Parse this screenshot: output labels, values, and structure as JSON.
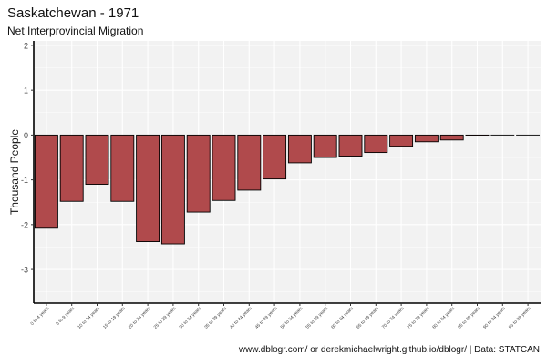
{
  "chart_data": {
    "type": "bar",
    "title": "Saskatchewan - 1971",
    "subtitle": "Net Interprovincial Migration",
    "xlabel": "",
    "ylabel": "Thousand People",
    "caption": "www.dblogr.com/ or derekmichaelwright.github.io/dblogr/ | Data: STATCAN",
    "ylim": [
      -3.75,
      2.1
    ],
    "yticks": [
      2,
      1,
      0,
      -1,
      -2,
      -3
    ],
    "grid": true,
    "legend": "none",
    "bar_color": "#b04a4c",
    "panel_color": "#f2f2f2",
    "categories": [
      "0 to 4 years",
      "5 to 9 years",
      "10 to 14 years",
      "15 to 19 years",
      "20 to 24 years",
      "25 to 29 years",
      "30 to 34 years",
      "35 to 39 years",
      "40 to 44 years",
      "45 to 49 years",
      "50 to 54 years",
      "55 to 59 years",
      "60 to 64 years",
      "65 to 69 years",
      "70 to 74 years",
      "75 to 79 years",
      "80 to 84 years",
      "85 to 89 years",
      "90 to 94 years",
      "95 to 99 years"
    ],
    "values": [
      -2.08,
      -1.48,
      -1.1,
      -1.48,
      -2.38,
      -2.43,
      -1.72,
      -1.46,
      -1.23,
      -0.98,
      -0.62,
      -0.5,
      -0.47,
      -0.39,
      -0.25,
      -0.15,
      -0.11,
      -0.02,
      0,
      0
    ]
  }
}
